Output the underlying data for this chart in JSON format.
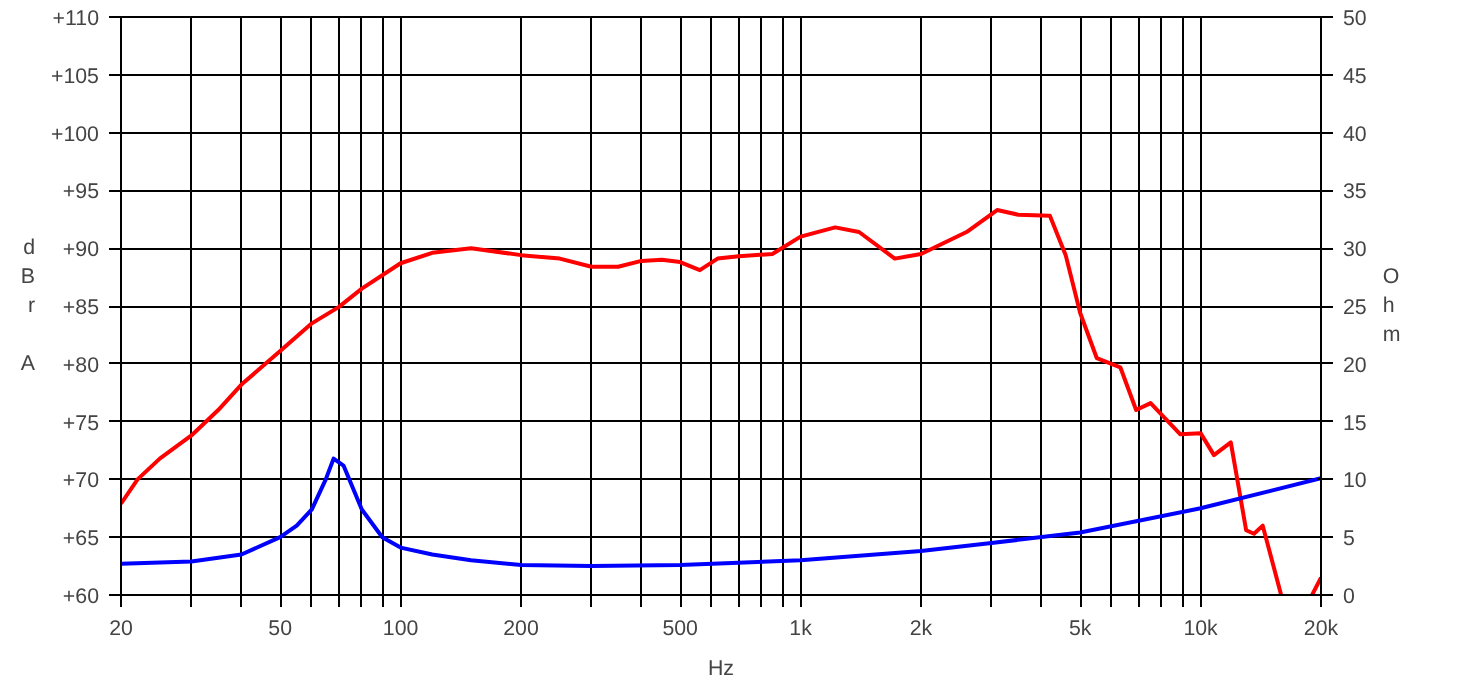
{
  "chart_data": {
    "type": "line",
    "xlabel": "Hz",
    "ylabel": "dBr A",
    "y2label": "Ohm",
    "log": "x",
    "grid": true,
    "xlim": [
      20,
      20000
    ],
    "ylim": [
      60,
      110
    ],
    "y2lim": [
      0,
      50
    ],
    "xticks": [
      20,
      {
        "value": 30,
        "label": null
      },
      {
        "value": 40,
        "label": null
      },
      50,
      {
        "value": 60,
        "label": null
      },
      {
        "value": 70,
        "label": null
      },
      {
        "value": 80,
        "label": null
      },
      {
        "value": 90,
        "label": null
      },
      100,
      200,
      {
        "value": 300,
        "label": null
      },
      {
        "value": 400,
        "label": null
      },
      500,
      {
        "value": 600,
        "label": null
      },
      {
        "value": 700,
        "label": null
      },
      {
        "value": 800,
        "label": null
      },
      {
        "value": 900,
        "label": null
      },
      {
        "value": 1000,
        "label": "1k"
      },
      {
        "value": 2000,
        "label": "2k"
      },
      {
        "value": 3000,
        "label": null
      },
      {
        "value": 4000,
        "label": null
      },
      {
        "value": 5000,
        "label": "5k"
      },
      {
        "value": 6000,
        "label": null
      },
      {
        "value": 7000,
        "label": null
      },
      {
        "value": 8000,
        "label": null
      },
      {
        "value": 9000,
        "label": null
      },
      {
        "value": 10000,
        "label": "10k"
      },
      {
        "value": 20000,
        "label": "20k"
      }
    ],
    "yticks": [
      {
        "value": 60,
        "label": "+60"
      },
      {
        "value": 65,
        "label": "+65"
      },
      {
        "value": 70,
        "label": "+70"
      },
      {
        "value": 75,
        "label": "+75"
      },
      {
        "value": 80,
        "label": "+80"
      },
      {
        "value": 85,
        "label": "+85"
      },
      {
        "value": 90,
        "label": "+90"
      },
      {
        "value": 95,
        "label": "+95"
      },
      {
        "value": 100,
        "label": "+100"
      },
      {
        "value": 105,
        "label": "+105"
      },
      {
        "value": 110,
        "label": "+110"
      }
    ],
    "y2ticks": [
      0,
      5,
      10,
      15,
      20,
      25,
      30,
      35,
      40,
      45,
      50
    ],
    "series": [
      {
        "color": "#ff0000",
        "x": [
          20,
          22,
          25,
          30,
          35,
          40,
          50,
          60,
          70,
          80,
          100,
          120,
          150,
          200,
          250,
          300,
          350,
          400,
          450,
          500,
          560,
          620,
          700,
          850,
          1000,
          1220,
          1400,
          1720,
          2000,
          2600,
          3100,
          3500,
          4200,
          4600,
          5000,
          5500,
          6300,
          6900,
          7500,
          8900,
          10000,
          10800,
          11900,
          13000,
          13600,
          14300,
          15900,
          17000,
          19000,
          20000
        ],
        "values": [
          67.9,
          70,
          71.8,
          73.8,
          76,
          78.2,
          81.1,
          83.5,
          84.9,
          86.5,
          88.7,
          89.6,
          90,
          89.4,
          89.1,
          88.4,
          88.4,
          88.9,
          89,
          88.8,
          88.1,
          89.1,
          89.3,
          89.5,
          91,
          91.8,
          91.4,
          89.1,
          89.5,
          91.4,
          93.3,
          92.9,
          92.8,
          89.4,
          84.4,
          80.5,
          79.7,
          76,
          76.6,
          73.9,
          74,
          72.1,
          73.2,
          65.6,
          65.3,
          66,
          60,
          null,
          60,
          61.5
        ]
      },
      {
        "color": "#0000ff",
        "axis": "y2",
        "x": [
          20,
          30,
          40,
          50,
          55,
          60,
          65,
          68,
          72,
          80,
          90,
          100,
          120,
          150,
          200,
          300,
          500,
          1000,
          2000,
          3000,
          5000,
          10000,
          20000
        ],
        "values": [
          2.7,
          2.9,
          3.5,
          5.0,
          6.0,
          7.4,
          10,
          11.8,
          11.2,
          7.4,
          5.0,
          4.1,
          3.5,
          3.0,
          2.6,
          2.5,
          2.6,
          3.0,
          3.8,
          4.5,
          5.4,
          7.5,
          10.1
        ]
      }
    ]
  }
}
